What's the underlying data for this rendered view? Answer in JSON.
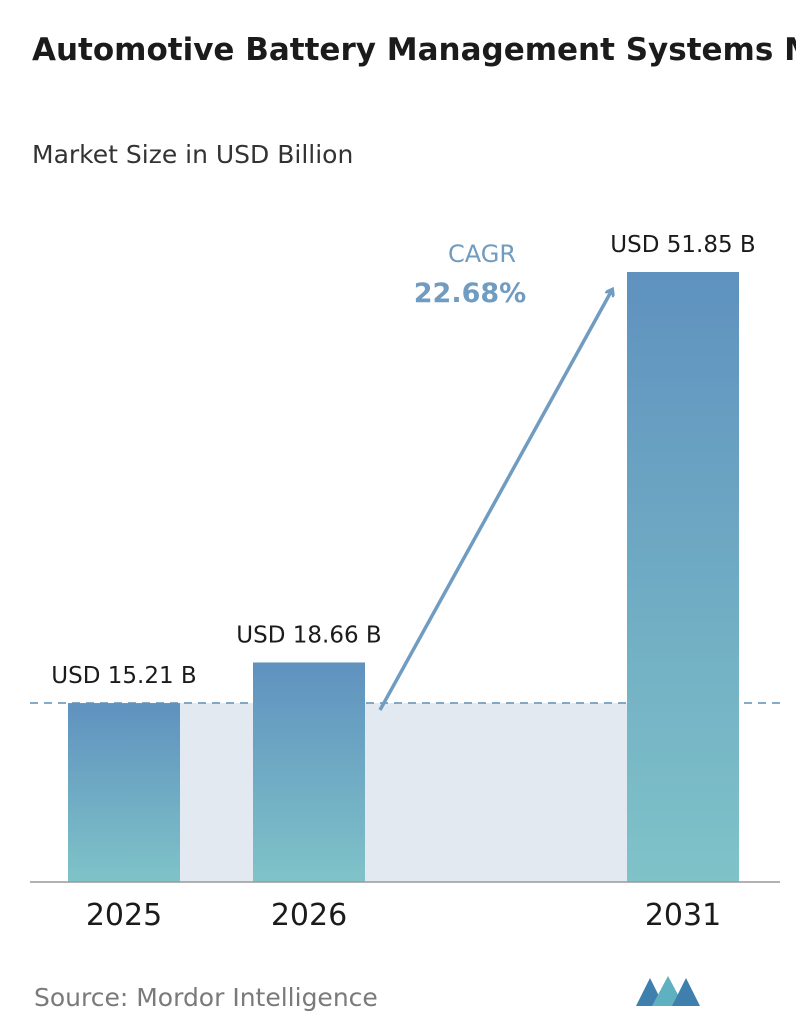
{
  "chart_data": {
    "type": "bar",
    "title": "Automotive Battery Management Systems Market",
    "subtitle": "Market Size in USD Billion",
    "categories": [
      "2025",
      "2026",
      "2031"
    ],
    "values": [
      15.21,
      18.66,
      51.85
    ],
    "value_labels": [
      "USD 15.21 B",
      "USD 18.66 B",
      "USD 51.85 B"
    ],
    "cagr_label": "CAGR",
    "cagr_value": "22.68%",
    "source": "Source: Mordor Intelligence"
  }
}
